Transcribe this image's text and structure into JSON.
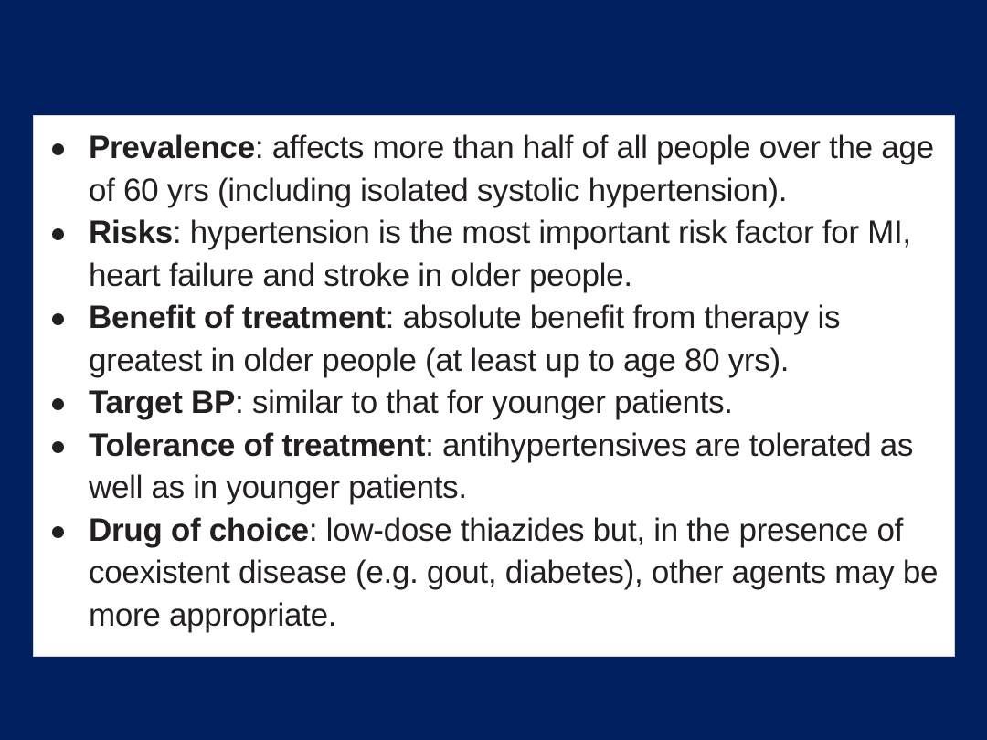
{
  "slide": {
    "background_color": "#00205f",
    "box_color": "#ffffff",
    "text_color": "#231f20",
    "bullets": [
      {
        "term": "Prevalence",
        "text": ": affects more than half of all people over the age of 60 yrs (including isolated systolic hypertension)."
      },
      {
        "term": "Risks",
        "text": ": hypertension is the most important risk factor for MI, heart failure and stroke in older people."
      },
      {
        "term": "Benefit of treatment",
        "text": ": absolute benefit from therapy is greatest in older people (at least up to age 80 yrs)."
      },
      {
        "term": "Target BP",
        "text": ": similar to that for younger patients."
      },
      {
        "term": "Tolerance of treatment",
        "text": ": antihypertensives are tolerated as well as in younger patients."
      },
      {
        "term": "Drug of choice",
        "text": ": low-dose thiazides but, in the presence of coexistent disease (e.g. gout, diabetes), other agents may be more appropriate."
      }
    ]
  }
}
